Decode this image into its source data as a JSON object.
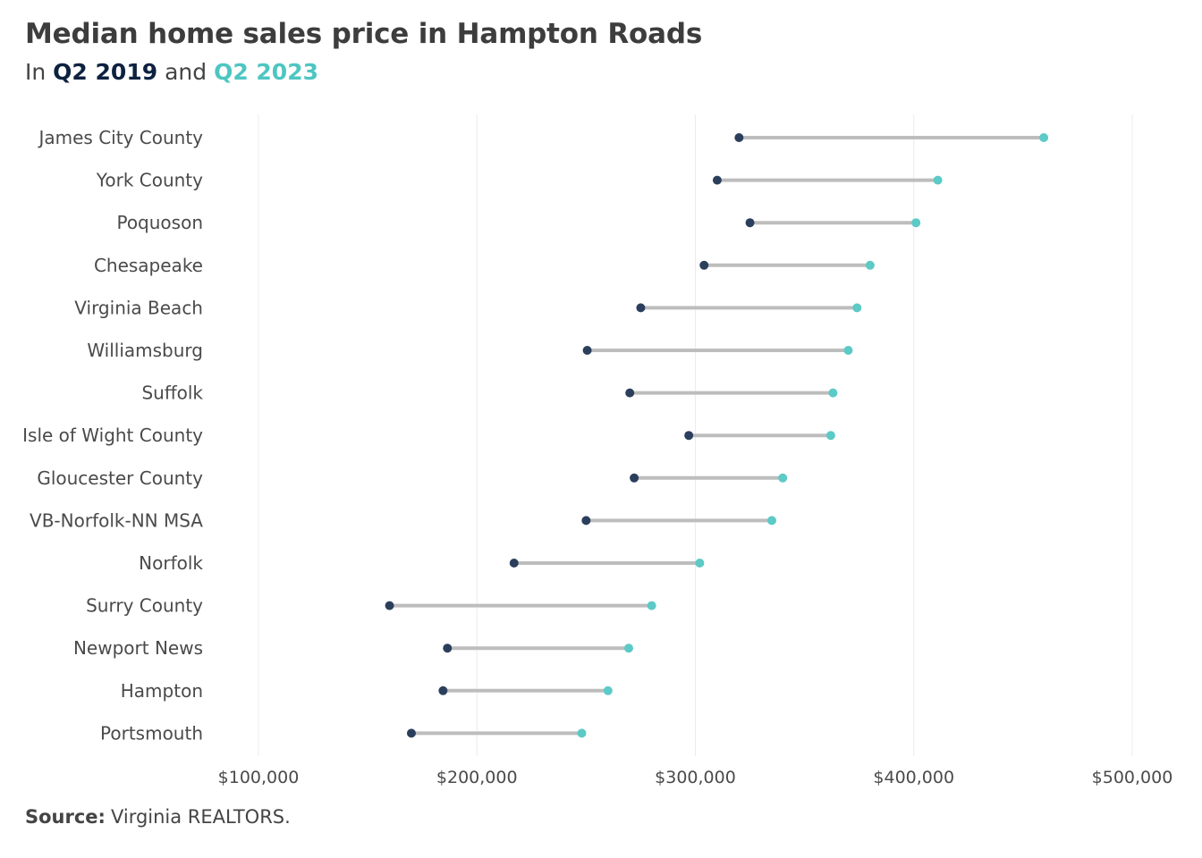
{
  "header": {
    "title": "Median home sales price in Hampton Roads",
    "subtitle_prefix": "In",
    "subtitle_series1": "Q2 2019",
    "subtitle_mid": "and",
    "subtitle_series2": "Q2 2023"
  },
  "source": {
    "label": "Source:",
    "text": "Virginia REALTORS."
  },
  "colors": {
    "q2_2019": "#2b3f5c",
    "q2_2023": "#5ccac6",
    "connector": "#bdbdbd",
    "grid": "#ececec"
  },
  "chart_data": {
    "type": "dumbbell",
    "xlim": [
      100000,
      500000
    ],
    "x_ticks": [
      100000,
      200000,
      300000,
      400000,
      500000
    ],
    "x_tick_labels": [
      "$100,000",
      "$200,000",
      "$300,000",
      "$400,000",
      "$500,000"
    ],
    "grid": true,
    "series": [
      {
        "name": "Q2 2019",
        "color": "#2b3f5c"
      },
      {
        "name": "Q2 2023",
        "color": "#5ccac6"
      }
    ],
    "categories": [
      "James City County",
      "York County",
      "Poquoson",
      "Chesapeake",
      "Virginia Beach",
      "Williamsburg",
      "Suffolk",
      "Isle of Wight County",
      "Gloucester County",
      "VB-Norfolk-NN MSA",
      "Norfolk",
      "Surry County",
      "Newport News",
      "Hampton",
      "Portsmouth"
    ],
    "q2_2019": [
      320000,
      310000,
      325000,
      304000,
      275000,
      250500,
      270000,
      297000,
      272000,
      250000,
      217000,
      160000,
      186500,
      184500,
      170000
    ],
    "q2_2023": [
      459500,
      411000,
      401000,
      380000,
      374000,
      370000,
      363000,
      362000,
      340000,
      335000,
      302000,
      280000,
      269500,
      260000,
      248000
    ]
  }
}
